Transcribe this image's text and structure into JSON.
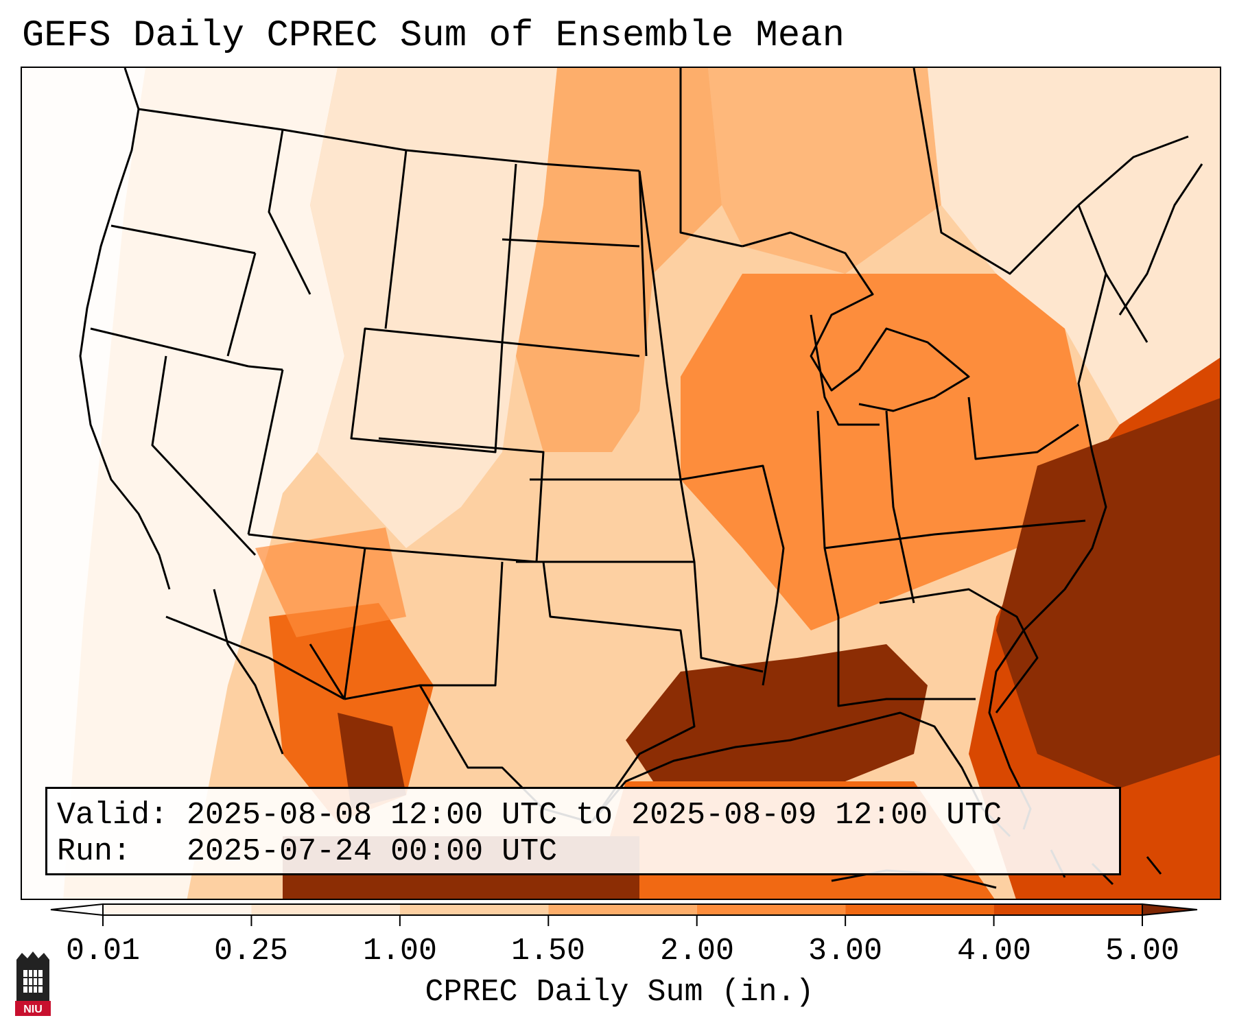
{
  "title": "GEFS Daily CPREC Sum of Ensemble Mean",
  "info_box": {
    "valid_label": "Valid:",
    "valid_value": "2025-08-08 12:00 UTC to 2025-08-09 12:00 UTC",
    "run_label": "Run:",
    "run_value": "2025-07-24 00:00 UTC"
  },
  "colorbar": {
    "label": "CPREC Daily Sum (in.)",
    "ticks": [
      "0.01",
      "0.25",
      "1.00",
      "1.50",
      "2.00",
      "3.00",
      "4.00",
      "5.00"
    ],
    "colors": [
      "#fff5eb",
      "#fee6ce",
      "#fdd0a2",
      "#fdae6b",
      "#fd8d3c",
      "#f16913",
      "#d94801",
      "#8c2d04"
    ],
    "under_color": "#ffffff",
    "over_color": "#7f2704"
  },
  "logo": {
    "text": "NIU",
    "color": "#c8102e"
  }
}
